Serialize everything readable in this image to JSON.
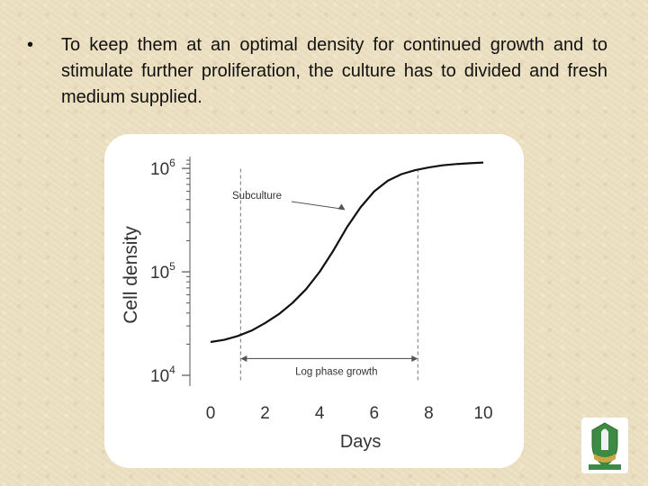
{
  "slide": {
    "bullet_char": "•",
    "bullet_text": "To keep them at an optimal density for continued growth and to stimulate further proliferation, the culture has to divided and fresh medium supplied."
  },
  "chart_data": {
    "type": "line",
    "xlabel": "Days",
    "ylabel": "Cell density",
    "x_ticks": [
      "0",
      "2",
      "4",
      "6",
      "8",
      "10"
    ],
    "xlim": [
      0,
      10
    ],
    "y_scale": "log",
    "y_ticks": [
      {
        "base": "10",
        "exp": "4",
        "value": 10000
      },
      {
        "base": "10",
        "exp": "5",
        "value": 100000
      },
      {
        "base": "10",
        "exp": "6",
        "value": 1000000
      }
    ],
    "ylim": [
      10000,
      1300000
    ],
    "series": [
      {
        "x": [
          0,
          0.5,
          1,
          1.5,
          2,
          2.5,
          3,
          3.5,
          4,
          4.5,
          5,
          5.5,
          6,
          6.5,
          7,
          7.5,
          8,
          8.5,
          9,
          9.5,
          10
        ],
        "y": [
          21000,
          22000,
          24000,
          27000,
          32000,
          39000,
          50000,
          68000,
          100000,
          160000,
          270000,
          420000,
          600000,
          760000,
          880000,
          960000,
          1020000,
          1070000,
          1100000,
          1120000,
          1140000
        ]
      }
    ],
    "annotations": {
      "subculture": {
        "label": "Subculture",
        "x": 5.0,
        "y": 380000
      },
      "log_phase": {
        "label": "Log phase growth",
        "x_start": 1.1,
        "x_end": 7.6,
        "y": 14500
      }
    },
    "reference_lines_x": [
      1.1,
      7.6
    ],
    "grid": false
  },
  "colors": {
    "curve": "#111111",
    "axis": "#555555",
    "dashed": "#777777",
    "background": "#ece0c2",
    "card": "#ffffff"
  }
}
